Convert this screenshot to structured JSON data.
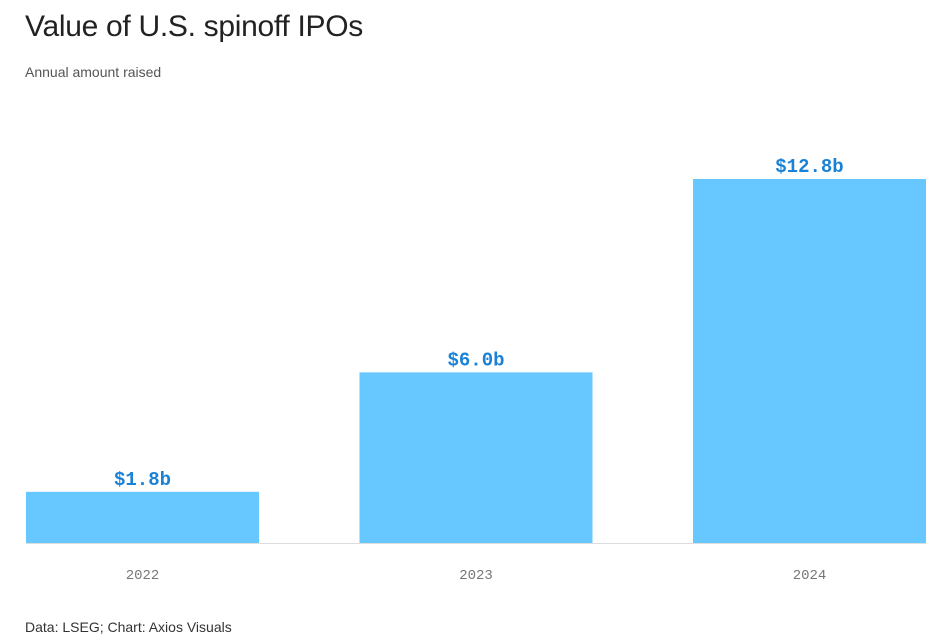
{
  "chart_data": {
    "type": "bar",
    "title": "Value of U.S. spinoff IPOs",
    "subtitle": "Annual amount raised",
    "categories": [
      "2022",
      "2023",
      "2024"
    ],
    "values": [
      1.8,
      6.0,
      12.8
    ],
    "value_labels": [
      "$1.8b",
      "$6.0b",
      "$12.8b"
    ],
    "units": "billions of U.S. dollars",
    "xlabel": "",
    "ylabel": "",
    "ylim": [
      0,
      12.8
    ],
    "grid": false,
    "legend": "none",
    "colors": {
      "bar": "#66c8ff",
      "value_label": "#1a82d6",
      "axis_line": "#dddddd",
      "tick_label": "#777777"
    }
  },
  "source": "Data: LSEG; Chart: Axios Visuals"
}
